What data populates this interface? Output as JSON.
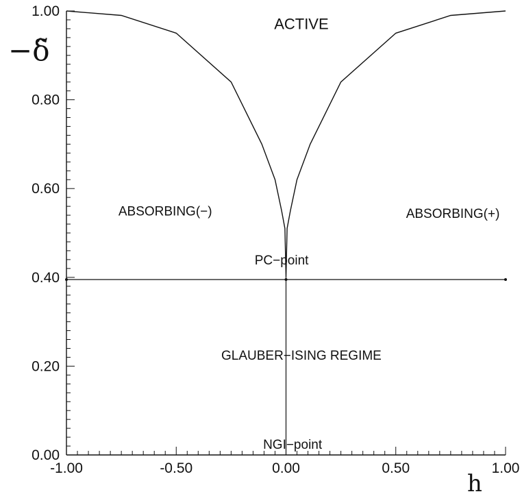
{
  "chart_data": {
    "type": "line",
    "xlabel": "h",
    "ylabel": "−δ̃",
    "xlim": [
      -1.0,
      1.0
    ],
    "ylim": [
      0.0,
      1.0
    ],
    "x_ticks": [
      "-1.00",
      "-0.50",
      "0.00",
      "0.50",
      "1.00"
    ],
    "y_ticks": [
      "0.00",
      "0.20",
      "0.40",
      "0.60",
      "0.80",
      "1.00"
    ],
    "grid": false,
    "series": [
      {
        "x": [
          -1.0,
          -0.75,
          -0.5,
          -0.25,
          -0.11,
          -0.05,
          -0.02,
          -0.005,
          0.0,
          0.005,
          0.02,
          0.05,
          0.11,
          0.25,
          0.5,
          0.75,
          1.0
        ],
        "y": [
          1.0,
          0.99,
          0.95,
          0.84,
          0.7,
          0.62,
          0.55,
          0.51,
          0.4,
          0.51,
          0.55,
          0.62,
          0.7,
          0.84,
          0.95,
          0.99,
          1.0
        ]
      },
      {
        "x": [
          -1.0,
          0.0,
          1.0
        ],
        "y": [
          0.395,
          0.395,
          0.395
        ]
      },
      {
        "x": [
          0.0,
          0.0
        ],
        "y": [
          0.0,
          0.4
        ]
      }
    ],
    "annotations": [
      {
        "text": "ACTIVE",
        "x": 0.07,
        "y": 0.97
      },
      {
        "text": "ABSORBING(−)",
        "x": -0.55,
        "y": 0.55
      },
      {
        "text": "ABSORBING(+)",
        "x": 0.76,
        "y": 0.545
      },
      {
        "text": "PC−point",
        "x": -0.02,
        "y": 0.44
      },
      {
        "text": "GLAUBER−ISING REGIME",
        "x": 0.07,
        "y": 0.225
      },
      {
        "text": "NGI−point",
        "x": 0.03,
        "y": 0.025
      }
    ]
  }
}
